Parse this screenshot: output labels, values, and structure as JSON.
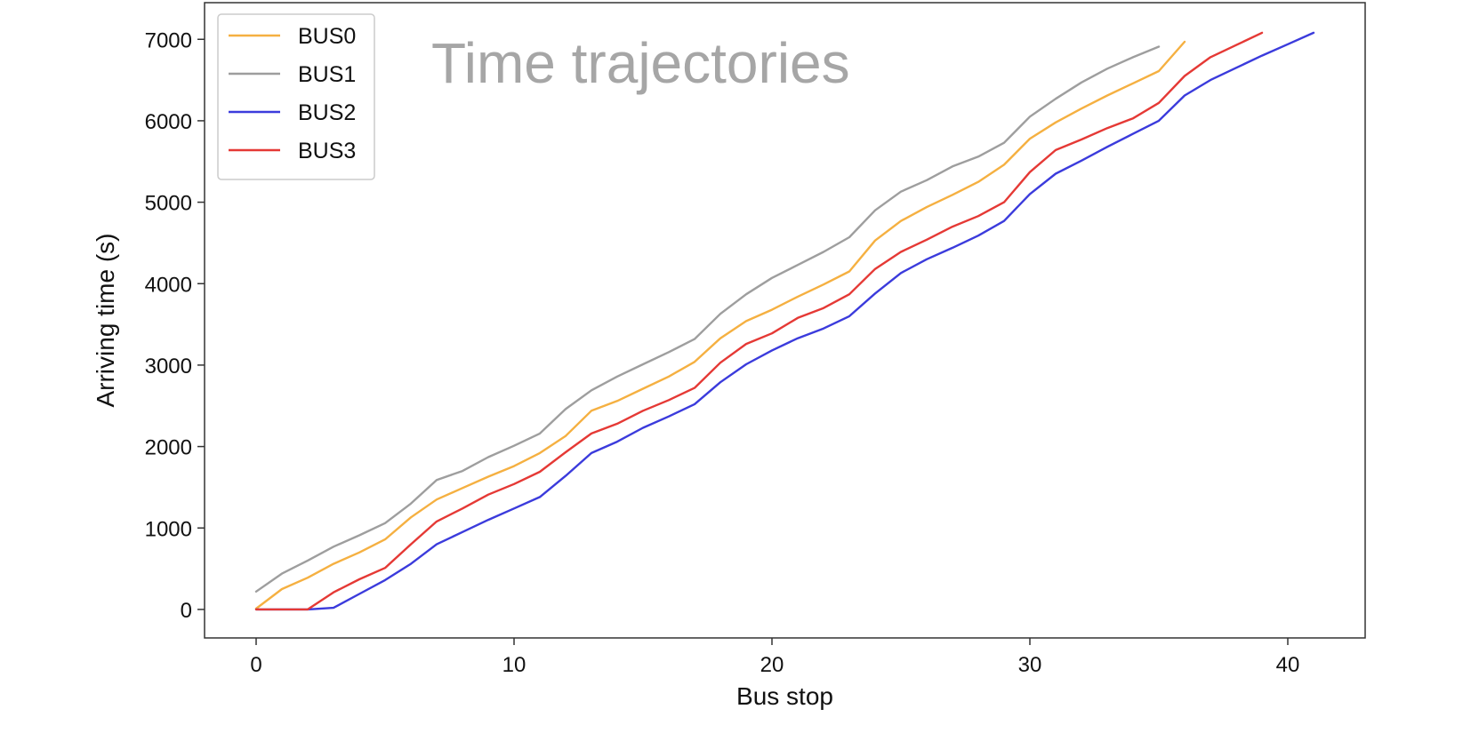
{
  "chart_data": {
    "type": "line",
    "title": "Time trajectories",
    "xlabel": "Bus stop",
    "ylabel": "Arriving time (s)",
    "xlim": [
      -2,
      43
    ],
    "ylim": [
      -350,
      7450
    ],
    "xticks": [
      0,
      10,
      20,
      30,
      40
    ],
    "yticks": [
      0,
      1000,
      2000,
      3000,
      4000,
      5000,
      6000,
      7000
    ],
    "grid": false,
    "legend_position": "top-left",
    "series": [
      {
        "name": "BUS0",
        "color": "#f5b041",
        "x": [
          0,
          1,
          2,
          3,
          4,
          5,
          6,
          7,
          8,
          9,
          10,
          11,
          12,
          13,
          14,
          15,
          16,
          17,
          18,
          19,
          20,
          21,
          22,
          23,
          24,
          25,
          26,
          27,
          28,
          29,
          30,
          31,
          32,
          33,
          34,
          35,
          36
        ],
        "y": [
          10,
          250,
          390,
          560,
          700,
          860,
          1130,
          1350,
          1490,
          1630,
          1760,
          1920,
          2130,
          2440,
          2560,
          2710,
          2860,
          3040,
          3330,
          3540,
          3680,
          3840,
          3990,
          4150,
          4530,
          4770,
          4940,
          5090,
          5250,
          5460,
          5780,
          5980,
          6150,
          6310,
          6460,
          6610,
          6970
        ]
      },
      {
        "name": "BUS1",
        "color": "#9e9e9e",
        "x": [
          0,
          1,
          2,
          3,
          4,
          5,
          6,
          7,
          8,
          9,
          10,
          11,
          12,
          13,
          14,
          15,
          16,
          17,
          18,
          19,
          20,
          21,
          22,
          23,
          24,
          25,
          26,
          27,
          28,
          29,
          30,
          31,
          32,
          33,
          34,
          35
        ],
        "y": [
          220,
          440,
          600,
          770,
          910,
          1060,
          1300,
          1590,
          1700,
          1870,
          2010,
          2160,
          2460,
          2690,
          2860,
          3010,
          3160,
          3320,
          3630,
          3870,
          4070,
          4230,
          4390,
          4570,
          4900,
          5130,
          5270,
          5440,
          5560,
          5730,
          6050,
          6270,
          6470,
          6640,
          6780,
          6910
        ]
      },
      {
        "name": "BUS2",
        "color": "#3b3bdc",
        "x": [
          0,
          1,
          2,
          3,
          4,
          5,
          6,
          7,
          8,
          9,
          10,
          11,
          12,
          13,
          14,
          15,
          16,
          17,
          18,
          19,
          20,
          21,
          22,
          23,
          24,
          25,
          26,
          27,
          28,
          29,
          30,
          31,
          32,
          33,
          34,
          35,
          36,
          37,
          38,
          39,
          40,
          41
        ],
        "y": [
          0,
          0,
          0,
          20,
          190,
          360,
          560,
          800,
          950,
          1100,
          1240,
          1380,
          1640,
          1920,
          2060,
          2230,
          2370,
          2520,
          2790,
          3010,
          3180,
          3330,
          3450,
          3600,
          3880,
          4130,
          4300,
          4440,
          4590,
          4770,
          5100,
          5350,
          5510,
          5680,
          5840,
          6000,
          6310,
          6500,
          6650,
          6800,
          6940,
          7080
        ]
      },
      {
        "name": "BUS3",
        "color": "#e53935",
        "x": [
          0,
          1,
          2,
          3,
          4,
          5,
          6,
          7,
          8,
          9,
          10,
          11,
          12,
          13,
          14,
          15,
          16,
          17,
          18,
          19,
          20,
          21,
          22,
          23,
          24,
          25,
          26,
          27,
          28,
          29,
          30,
          31,
          32,
          33,
          34,
          35,
          36,
          37,
          38,
          39
        ],
        "y": [
          0,
          0,
          0,
          210,
          370,
          510,
          800,
          1080,
          1240,
          1410,
          1540,
          1690,
          1930,
          2160,
          2280,
          2440,
          2570,
          2720,
          3030,
          3260,
          3390,
          3580,
          3700,
          3870,
          4180,
          4390,
          4540,
          4700,
          4830,
          5000,
          5370,
          5640,
          5770,
          5910,
          6030,
          6220,
          6550,
          6780,
          6930,
          7080
        ]
      }
    ]
  }
}
